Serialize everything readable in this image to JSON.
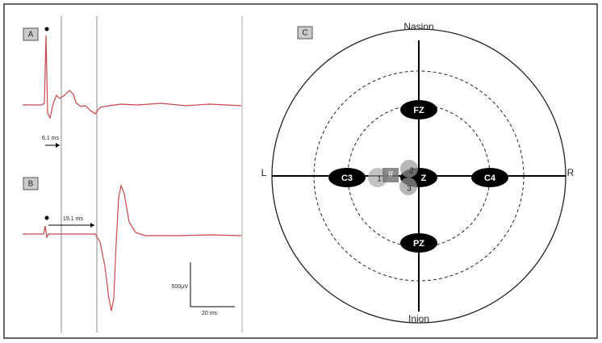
{
  "panel_a": {
    "label": "A",
    "latency": "6.1 ms"
  },
  "panel_b": {
    "label": "B",
    "latency": "19.1 ms"
  },
  "scale_bar": {
    "amplitude": "500µV",
    "time": "20 ms"
  },
  "panel_c": {
    "label": "C",
    "top": "Nasion",
    "bottom": "Inion",
    "left": "L",
    "right": "R",
    "electrodes": [
      "FZ",
      "C3",
      "Z",
      "C4",
      "PZ"
    ],
    "markers": [
      "#",
      "1",
      "2",
      "3"
    ]
  }
}
